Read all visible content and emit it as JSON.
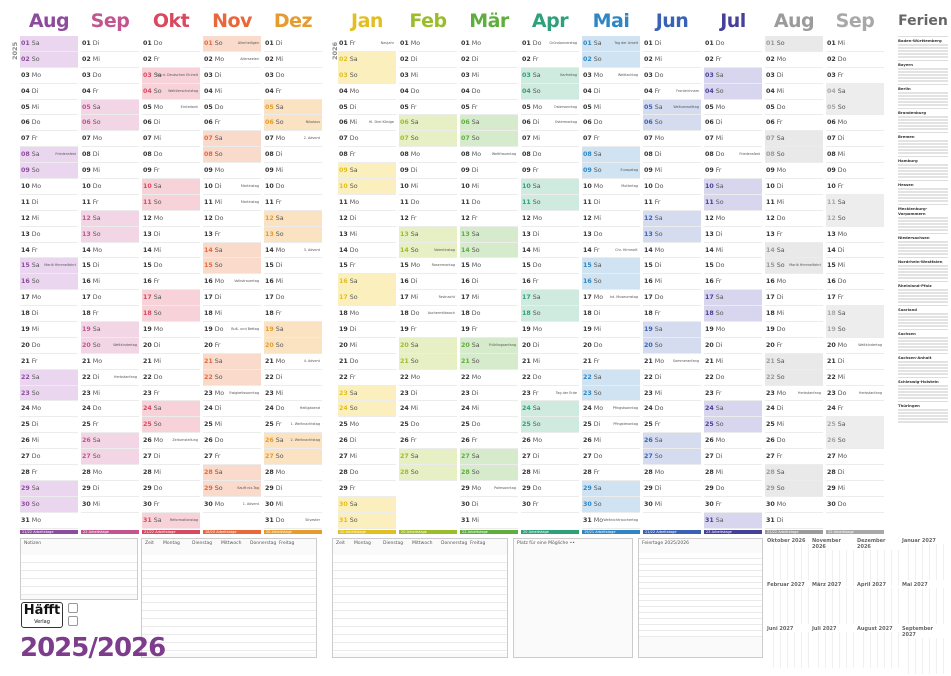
{
  "calendar": {
    "year_display": "2025/2026",
    "year_2025": "2025",
    "year_2026": "2026",
    "brand": "Häfft",
    "brand_sub": "Verlag",
    "months": [
      {
        "name": "Aug",
        "short": "Aug",
        "color": "#8d4b9e",
        "week": "#ead7ef",
        "start": 5,
        "days": 31,
        "foot": "21/22 Arbeitstage",
        "notes": {
          "8": "Friedensfest",
          "15": "Mariä Himmelfahrt"
        }
      },
      {
        "name": "Sep",
        "color": "#c2548f",
        "week": "#f3d6e6",
        "start": 1,
        "days": 30,
        "foot": "22 Arbeitstage",
        "notes": {
          "20": "Weltkindertag",
          "22": "Herbstanfang"
        }
      },
      {
        "name": "Okt",
        "color": "#d9485f",
        "week": "#f7d3d9",
        "start": 3,
        "days": 31,
        "foot": "21/22 Arbeitstage",
        "notes": {
          "3": "Tag d. Deutschen Einheit",
          "4": "Welttierschutztag",
          "5": "Erntedank",
          "26": "Zeitumstellung",
          "31": "Reformationstag"
        }
      },
      {
        "name": "Nov",
        "color": "#e8673b",
        "week": "#fadacb",
        "start": 6,
        "days": 30,
        "foot": "18/20 Arbeitstage",
        "notes": {
          "1": "Allerheiligen",
          "2": "Allerseelen",
          "10": "Martinstag",
          "11": "Martinstag",
          "16": "Volkstrauertag",
          "19": "Buß- und Bettag",
          "23": "Ewigkeitssonntag",
          "29": "Kauft nix-Tag",
          "30": "1. Advent"
        }
      },
      {
        "name": "Dez",
        "color": "#e59b2d",
        "week": "#fbe3c2",
        "start": 1,
        "days": 31,
        "foot": "20 Arbeitstage",
        "notes": {
          "6": "Nikolaus",
          "7": "2. Advent",
          "14": "3. Advent",
          "21": "4. Advent",
          "24": "Heiligabend",
          "25": "1. Weihnachtstag",
          "26": "2. Weihnachtstag",
          "31": "Silvester"
        }
      },
      {
        "name": "Jan",
        "color": "#e3be1f",
        "week": "#fbf0bd",
        "start": 4,
        "days": 31,
        "foot": "20 Arbeitstage",
        "notes": {
          "1": "Neujahr",
          "6": "Hl. Drei Könige"
        }
      },
      {
        "name": "Feb",
        "color": "#9bbd2a",
        "week": "#e6f0c4",
        "start": 0,
        "days": 28,
        "foot": "20 Arbeitstage",
        "notes": {
          "14": "Valentinstag",
          "15": "Rosenmontag",
          "17": "Fastnacht",
          "18": "Aschermittwoch"
        }
      },
      {
        "name": "Mär",
        "color": "#5fae3d",
        "week": "#d6ebcb",
        "start": 0,
        "days": 31,
        "foot": "22 Arbeitstage",
        "notes": {
          "8": "Weltfrauentag",
          "20": "Frühlingsanfang",
          "29": "Palmsonntag"
        }
      },
      {
        "name": "Apr",
        "color": "#2ea07a",
        "week": "#cfeadf",
        "start": 3,
        "days": 30,
        "foot": "20 Arbeitstage",
        "notes": {
          "1": "Gründonnerstag",
          "3": "Karfreitag",
          "5": "Ostersonntag",
          "6": "Ostermontag",
          "23": "Tag der Erde"
        }
      },
      {
        "name": "Mai",
        "color": "#2f86c5",
        "week": "#d0e3f2",
        "start": 5,
        "days": 31,
        "foot": "19/21 Arbeitstage",
        "notes": {
          "1": "Tag der Arbeit",
          "3": "Weltlachtag",
          "9": "Europatag",
          "10": "Muttertag",
          "14": "Chr. Himmelf.",
          "17": "Int. Museumstag",
          "24": "Pfingstsonntag",
          "25": "Pfingstmontag",
          "31": "Weltnichtrauchertag"
        }
      },
      {
        "name": "Jun",
        "color": "#3a62b4",
        "week": "#d5dcf0",
        "start": 1,
        "days": 30,
        "foot": "21/22 Arbeitstage",
        "notes": {
          "4": "Fronleichnam",
          "5": "Weltumwelttag",
          "21": "Sommeranfang"
        }
      },
      {
        "name": "Jul",
        "color": "#45409a",
        "week": "#d8d6ee",
        "start": 3,
        "days": 31,
        "foot": "23 Arbeitstage",
        "notes": {
          "8": "Friedensfest"
        }
      },
      {
        "name": "Aug",
        "color": "#9b9b9b",
        "week": "#e9e9e9",
        "start": 6,
        "days": 31,
        "foot": "21/22 Arbeitstage",
        "notes": {
          "15": "Mariä Himmelfahrt",
          "23": "Herbstanfang"
        }
      },
      {
        "name": "Sep",
        "color": "#a8a8a8",
        "week": "#ededed",
        "start": 2,
        "days": 30,
        "foot": "22 Arbeitstage",
        "notes": {
          "20": "Weltkindertag",
          "23": "Herbstanfang"
        }
      }
    ],
    "weekday_abbr": [
      "Mo",
      "Di",
      "Mi",
      "Do",
      "Fr",
      "Sa",
      "So"
    ],
    "ferien_title": "Ferien",
    "states": [
      "Baden-Württemberg",
      "Bayern",
      "Berlin",
      "Brandenburg",
      "Bremen",
      "Hamburg",
      "Hessen",
      "Mecklenburg-Vorpommern",
      "Niedersachsen",
      "Nordrhein-Westfalen",
      "Rheinland-Pfalz",
      "Saarland",
      "Sachsen",
      "Sachsen-Anhalt",
      "Schleswig-Holstein",
      "Thüringen"
    ]
  },
  "bottom": {
    "notes_label": "Notizen",
    "timetable_cols": [
      "Zeit",
      "Montag",
      "Dienstag",
      "Mittwoch",
      "Donnerstag",
      "Freitag"
    ],
    "note_box_label": "Platz für eine Mögliche ••",
    "feiertage_title": "Feiertage 2025/2026",
    "mini_titles": [
      "Oktober 2026",
      "November 2026",
      "Dezember 2026",
      "Januar 2027",
      "Februar 2027",
      "März 2027",
      "April 2027",
      "Mai 2027",
      "Juni 2027",
      "Juli 2027",
      "August 2027",
      "September 2027"
    ]
  }
}
